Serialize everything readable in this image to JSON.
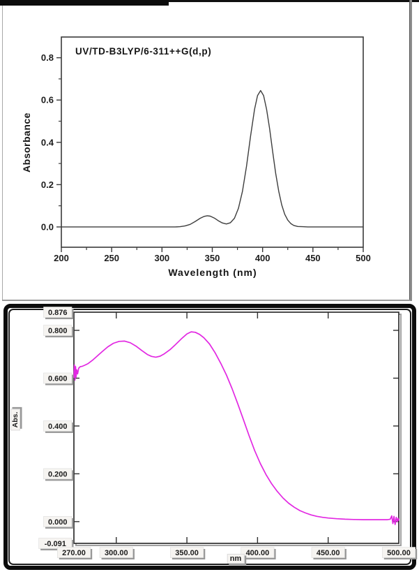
{
  "colors": {
    "theoretical_line": "#3d3d3d",
    "experimental_line": "#e228e2",
    "frame_black": "#0c0c0c",
    "axis_stroke": "#3a3a3a",
    "label_box_bg": "#f6f4f1",
    "label_box_shadow": "#989898",
    "text": "#1c1c1c"
  },
  "chart_data": [
    {
      "id": "theoretical-uv-spectrum",
      "type": "line",
      "title": "UV/TD-B3LYP/6-311++G(d,p)",
      "xlabel": "Wavelength (nm)",
      "ylabel": "Absorbance",
      "xlim": [
        200,
        500
      ],
      "ylim": [
        -0.096,
        0.898
      ],
      "grid": false,
      "legend": "none",
      "x_major_ticks": [
        200,
        250,
        300,
        350,
        400,
        450,
        500
      ],
      "x_tick_labels": [
        "200",
        "250",
        "300",
        "350",
        "400",
        "450",
        "500"
      ],
      "x_minor_ticks": [
        225,
        275,
        325,
        375,
        425,
        475
      ],
      "y_major_ticks": [
        0.0,
        0.2,
        0.4,
        0.6,
        0.8
      ],
      "y_tick_labels": [
        "0.0",
        "0.2",
        "0.4",
        "0.6",
        "0.8"
      ],
      "y_minor_ticks": [
        0.1,
        0.3,
        0.5,
        0.7
      ],
      "line_color": "#3d3d3d",
      "peaks": [
        {
          "wavelength_nm": 345,
          "absorbance": 0.053
        },
        {
          "wavelength_nm": 398,
          "absorbance": 0.645
        }
      ],
      "points": [
        [
          200,
          0
        ],
        [
          230,
          0
        ],
        [
          260,
          0
        ],
        [
          285,
          0
        ],
        [
          300,
          0
        ],
        [
          308,
          0
        ],
        [
          313,
          0.0
        ],
        [
          318,
          0.001
        ],
        [
          323,
          0.005
        ],
        [
          328,
          0.012
        ],
        [
          333,
          0.026
        ],
        [
          338,
          0.041
        ],
        [
          342,
          0.05
        ],
        [
          345,
          0.053
        ],
        [
          348,
          0.051
        ],
        [
          352,
          0.042
        ],
        [
          356,
          0.029
        ],
        [
          360,
          0.019
        ],
        [
          364,
          0.014
        ],
        [
          368,
          0.02
        ],
        [
          372,
          0.041
        ],
        [
          376,
          0.088
        ],
        [
          380,
          0.169
        ],
        [
          384,
          0.287
        ],
        [
          388,
          0.427
        ],
        [
          392,
          0.556
        ],
        [
          395,
          0.621
        ],
        [
          398,
          0.645
        ],
        [
          401,
          0.621
        ],
        [
          404,
          0.556
        ],
        [
          407,
          0.463
        ],
        [
          410,
          0.356
        ],
        [
          413,
          0.254
        ],
        [
          416,
          0.169
        ],
        [
          419,
          0.104
        ],
        [
          422,
          0.06
        ],
        [
          425,
          0.032
        ],
        [
          428,
          0.016
        ],
        [
          431,
          0.007
        ],
        [
          435,
          0.002
        ],
        [
          440,
          0.001
        ],
        [
          445,
          0
        ],
        [
          460,
          0
        ],
        [
          480,
          0
        ],
        [
          500,
          0
        ]
      ]
    },
    {
      "id": "experimental-uv-spectrum",
      "type": "line",
      "title": "",
      "xlabel": "nm",
      "ylabel": "Abs.",
      "xlim": [
        270,
        500
      ],
      "ylim": [
        -0.091,
        0.876
      ],
      "grid": false,
      "legend": "none",
      "x_major_ticks": [
        270,
        300,
        350,
        400,
        450,
        500
      ],
      "x_tick_labels": [
        "270.00",
        "300.00",
        "350.00",
        "400.00",
        "450.00",
        "500.00"
      ],
      "x_inner_ticks": [
        300,
        350,
        400,
        450
      ],
      "y_tick_values": [
        0.876,
        0.8,
        0.6,
        0.4,
        0.2,
        0.0,
        -0.091
      ],
      "y_tick_labels": [
        "0.876",
        "0.800",
        "0.600",
        "0.400",
        "0.200",
        "0.000",
        "-0.091"
      ],
      "y_inner_ticks": [
        0.8,
        0.6,
        0.4,
        0.2,
        0.0
      ],
      "line_color": "#e228e2",
      "peaks": [
        {
          "wavelength_nm": 305,
          "absorbance": 0.755
        },
        {
          "wavelength_nm": 353,
          "absorbance": 0.795
        }
      ],
      "points": [
        [
          270,
          0.604
        ],
        [
          270.4,
          0.655
        ],
        [
          270.8,
          0.592
        ],
        [
          271.2,
          0.648
        ],
        [
          271.6,
          0.605
        ],
        [
          272,
          0.635
        ],
        [
          272.6,
          0.618
        ],
        [
          273.4,
          0.642
        ],
        [
          274.5,
          0.648
        ],
        [
          276,
          0.65
        ],
        [
          278,
          0.655
        ],
        [
          280,
          0.661
        ],
        [
          283,
          0.674
        ],
        [
          286,
          0.69
        ],
        [
          290,
          0.711
        ],
        [
          294,
          0.731
        ],
        [
          298,
          0.746
        ],
        [
          302,
          0.754
        ],
        [
          306,
          0.755
        ],
        [
          310,
          0.748
        ],
        [
          314,
          0.734
        ],
        [
          318,
          0.716
        ],
        [
          322,
          0.699
        ],
        [
          325,
          0.691
        ],
        [
          328,
          0.688
        ],
        [
          331,
          0.692
        ],
        [
          334,
          0.702
        ],
        [
          338,
          0.719
        ],
        [
          342,
          0.741
        ],
        [
          346,
          0.764
        ],
        [
          350,
          0.785
        ],
        [
          353,
          0.794
        ],
        [
          356,
          0.792
        ],
        [
          359,
          0.783
        ],
        [
          362,
          0.769
        ],
        [
          366,
          0.743
        ],
        [
          370,
          0.706
        ],
        [
          374,
          0.662
        ],
        [
          378,
          0.613
        ],
        [
          382,
          0.556
        ],
        [
          386,
          0.493
        ],
        [
          390,
          0.427
        ],
        [
          394,
          0.36
        ],
        [
          398,
          0.297
        ],
        [
          402,
          0.243
        ],
        [
          406,
          0.197
        ],
        [
          410,
          0.158
        ],
        [
          414,
          0.126
        ],
        [
          418,
          0.099
        ],
        [
          422,
          0.077
        ],
        [
          426,
          0.06
        ],
        [
          430,
          0.046
        ],
        [
          434,
          0.036
        ],
        [
          438,
          0.028
        ],
        [
          442,
          0.022
        ],
        [
          446,
          0.018
        ],
        [
          450,
          0.015
        ],
        [
          456,
          0.012
        ],
        [
          462,
          0.01
        ],
        [
          468,
          0.009
        ],
        [
          475,
          0.008
        ],
        [
          482,
          0.008
        ],
        [
          488,
          0.008
        ],
        [
          492,
          0.008
        ],
        [
          494,
          0.01
        ],
        [
          495,
          0.024
        ],
        [
          495.8,
          -0.008
        ],
        [
          496.6,
          0.022
        ],
        [
          497.4,
          -0.012
        ],
        [
          498.2,
          0.018
        ],
        [
          499,
          0.0
        ],
        [
          499.6,
          0.014
        ],
        [
          500,
          0.006
        ]
      ]
    }
  ]
}
